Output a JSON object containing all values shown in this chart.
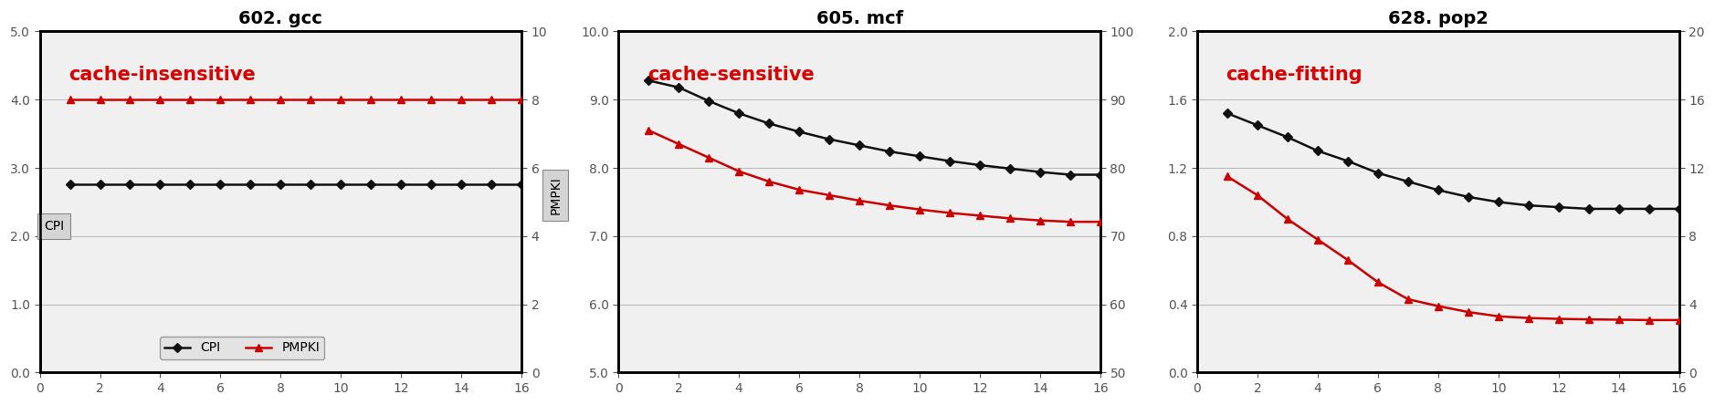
{
  "panels": [
    {
      "title": "602. gcc",
      "annotation": "cache-insensitive",
      "annotation_color": "#dd0000",
      "x": [
        1,
        2,
        3,
        4,
        5,
        6,
        7,
        8,
        9,
        10,
        11,
        12,
        13,
        14,
        15,
        16
      ],
      "cpi": [
        2.76,
        2.76,
        2.76,
        2.76,
        2.76,
        2.76,
        2.76,
        2.76,
        2.76,
        2.76,
        2.76,
        2.76,
        2.76,
        2.76,
        2.76,
        2.76
      ],
      "pmpki": [
        8.0,
        8.0,
        8.0,
        8.0,
        8.0,
        8.0,
        8.0,
        8.0,
        8.0,
        8.0,
        8.0,
        8.0,
        8.0,
        8.0,
        8.0,
        8.0
      ],
      "cpi_ylim": [
        0.0,
        5.0
      ],
      "cpi_yticks": [
        0.0,
        1.0,
        2.0,
        3.0,
        4.0,
        5.0
      ],
      "cpi_yticklabels": [
        "0.0",
        "1.0",
        "2.0",
        "3.0",
        "4.0",
        "5.0"
      ],
      "pmpki_ylim": [
        0,
        10
      ],
      "pmpki_yticks": [
        0,
        2,
        4,
        6,
        8,
        10
      ],
      "pmpki_yticklabels": [
        "0",
        "2",
        "4",
        "6",
        "8",
        "10"
      ],
      "xlim": [
        0,
        16
      ],
      "xticks": [
        0,
        2,
        4,
        6,
        8,
        10,
        12,
        14,
        16
      ],
      "show_legend": true,
      "show_cpi_label": true,
      "show_pmpki_label": true
    },
    {
      "title": "605. mcf",
      "annotation": "cache-sensitive",
      "annotation_color": "#dd0000",
      "x": [
        1,
        2,
        3,
        4,
        5,
        6,
        7,
        8,
        9,
        10,
        11,
        12,
        13,
        14,
        15,
        16
      ],
      "cpi": [
        9.28,
        9.18,
        8.98,
        8.8,
        8.65,
        8.53,
        8.42,
        8.33,
        8.24,
        8.17,
        8.1,
        8.04,
        7.99,
        7.94,
        7.9,
        7.9
      ],
      "pmpki": [
        85.5,
        83.5,
        81.5,
        79.5,
        78.0,
        76.8,
        76.0,
        75.2,
        74.5,
        73.9,
        73.4,
        73.0,
        72.6,
        72.3,
        72.1,
        72.1
      ],
      "cpi_ylim": [
        5.0,
        10.0
      ],
      "cpi_yticks": [
        5.0,
        6.0,
        7.0,
        8.0,
        9.0,
        10.0
      ],
      "cpi_yticklabels": [
        "5.0",
        "6.0",
        "7.0",
        "8.0",
        "9.0",
        "10.0"
      ],
      "pmpki_ylim": [
        50,
        100
      ],
      "pmpki_yticks": [
        50,
        60,
        70,
        80,
        90,
        100
      ],
      "pmpki_yticklabels": [
        "50",
        "60",
        "70",
        "80",
        "90",
        "100"
      ],
      "xlim": [
        0,
        16
      ],
      "xticks": [
        0,
        2,
        4,
        6,
        8,
        10,
        12,
        14,
        16
      ],
      "show_legend": false,
      "show_cpi_label": false,
      "show_pmpki_label": false
    },
    {
      "title": "628. pop2",
      "annotation": "cache-fitting",
      "annotation_color": "#dd0000",
      "x": [
        1,
        2,
        3,
        4,
        5,
        6,
        7,
        8,
        9,
        10,
        11,
        12,
        13,
        14,
        15,
        16
      ],
      "cpi": [
        1.52,
        1.45,
        1.38,
        1.3,
        1.24,
        1.17,
        1.12,
        1.07,
        1.03,
        1.0,
        0.98,
        0.97,
        0.96,
        0.96,
        0.96,
        0.96
      ],
      "pmpki": [
        11.5,
        10.4,
        9.0,
        7.8,
        6.6,
        5.3,
        4.3,
        3.9,
        3.55,
        3.3,
        3.2,
        3.15,
        3.12,
        3.1,
        3.08,
        3.08
      ],
      "cpi_ylim": [
        0.0,
        2.0
      ],
      "cpi_yticks": [
        0.0,
        0.4,
        0.8,
        1.2,
        1.6,
        2.0
      ],
      "cpi_yticklabels": [
        "0.0",
        "0.4",
        "0.8",
        "1.2",
        "1.6",
        "2.0"
      ],
      "pmpki_ylim": [
        0,
        20
      ],
      "pmpki_yticks": [
        0,
        4,
        8,
        12,
        16,
        20
      ],
      "pmpki_yticklabels": [
        "0",
        "4",
        "8",
        "12",
        "16",
        "20"
      ],
      "xlim": [
        0,
        16
      ],
      "xticks": [
        0,
        2,
        4,
        6,
        8,
        10,
        12,
        14,
        16
      ],
      "show_legend": false,
      "show_cpi_label": false,
      "show_pmpki_label": false
    }
  ],
  "cpi_color": "#111111",
  "pmpki_color": "#cc0000",
  "cpi_marker": "D",
  "pmpki_marker": "^",
  "linewidth": 1.8,
  "markersize": 5,
  "grid_color": "#bbbbbb",
  "grid_linewidth": 0.8,
  "tick_color": "#555555",
  "title_fontsize": 14,
  "tick_fontsize": 10,
  "annotation_fontsize": 15,
  "legend_fontsize": 10,
  "figsize": [
    18.78,
    4.44
  ],
  "dpi": 100,
  "bg_color": "#f0f0f0"
}
